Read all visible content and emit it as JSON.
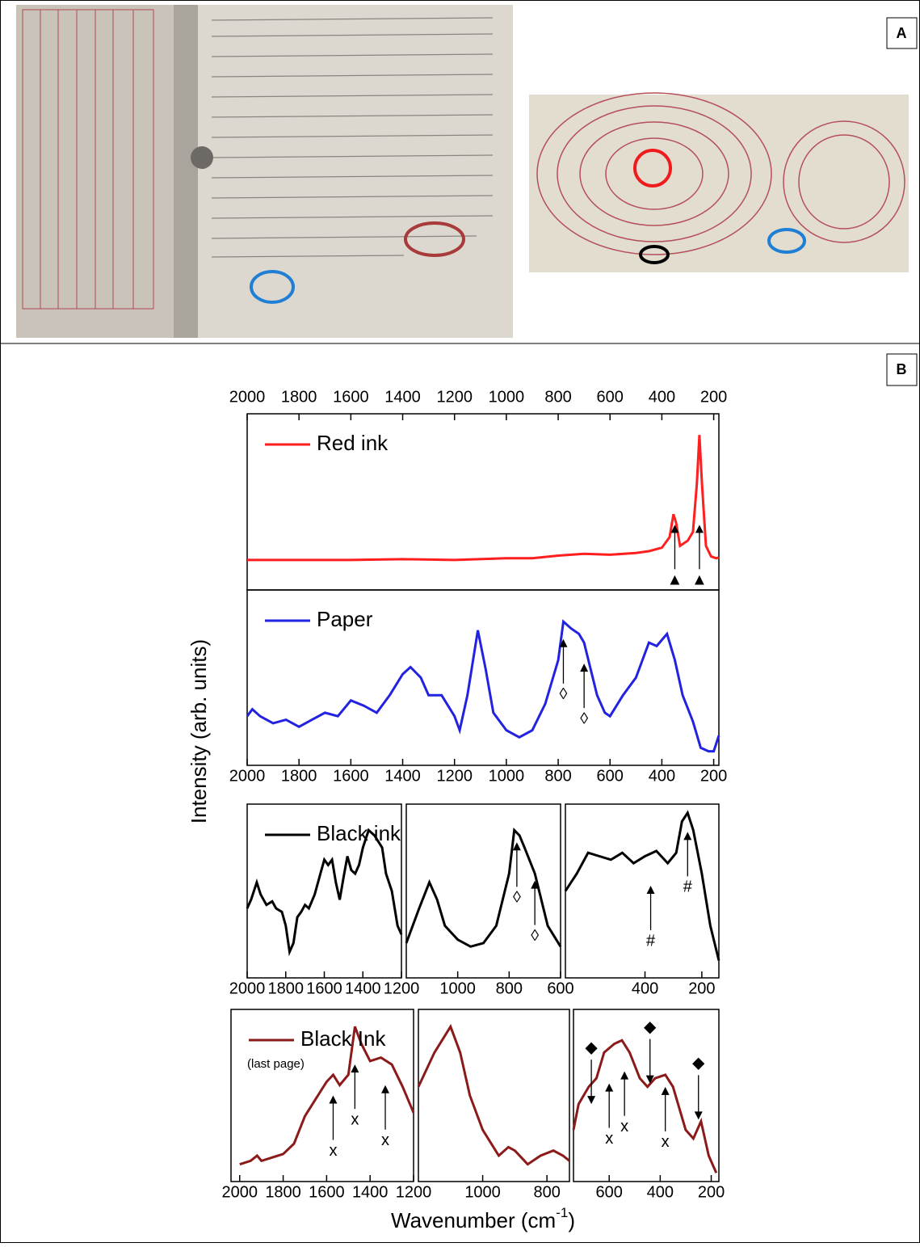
{
  "panels": {
    "a": "A",
    "b": "B"
  },
  "figure": {
    "y_label": "Intensity (arb. units)",
    "x_label": [
      "Wavenumber (cm",
      "-1",
      ")"
    ]
  },
  "chart_data": [
    {
      "type": "line",
      "xaxis_position": "top",
      "xlim": [
        2000,
        180
      ],
      "ylim": [
        0,
        100
      ],
      "xticks": [
        2000,
        1800,
        1600,
        1400,
        1200,
        1000,
        800,
        600,
        400,
        200
      ],
      "x": [
        2000,
        1800,
        1600,
        1400,
        1200,
        1000,
        900,
        800,
        700,
        600,
        500,
        450,
        400,
        370,
        355,
        345,
        330,
        300,
        280,
        265,
        255,
        245,
        230,
        210,
        190,
        180
      ],
      "series": [
        {
          "name": "Red ink",
          "color": "#ff1f1f",
          "values": [
            17,
            17,
            17,
            17.5,
            17,
            18,
            18,
            19.5,
            20.5,
            20,
            21,
            22,
            24,
            30,
            43,
            38,
            25,
            28,
            33,
            60,
            88,
            60,
            25,
            19,
            18,
            18.5
          ]
        }
      ],
      "annotations": [
        {
          "text": "▲",
          "x": 350,
          "y": 37,
          "arrow": "up"
        },
        {
          "text": "▲",
          "x": 255,
          "y": 37,
          "arrow": "up"
        }
      ]
    },
    {
      "type": "line",
      "xaxis_position": "bottom",
      "xlim": [
        2000,
        180
      ],
      "ylim": [
        0,
        100
      ],
      "xticks": [
        2000,
        1800,
        1600,
        1400,
        1200,
        1000,
        800,
        600,
        400,
        200
      ],
      "x": [
        2000,
        1980,
        1950,
        1900,
        1850,
        1800,
        1750,
        1700,
        1650,
        1600,
        1550,
        1500,
        1450,
        1400,
        1370,
        1330,
        1300,
        1250,
        1200,
        1180,
        1150,
        1110,
        1080,
        1050,
        1000,
        950,
        900,
        850,
        800,
        780,
        750,
        720,
        700,
        650,
        620,
        600,
        550,
        500,
        450,
        420,
        380,
        350,
        320,
        280,
        250,
        220,
        200,
        180
      ],
      "series": [
        {
          "name": "Paper",
          "color": "#2222e0",
          "values": [
            28,
            32,
            28,
            24,
            26,
            22,
            26,
            30,
            28,
            37,
            34,
            30,
            40,
            52,
            56,
            50,
            40,
            40,
            28,
            20,
            40,
            77,
            55,
            30,
            20,
            16,
            20,
            35,
            60,
            82,
            78,
            75,
            70,
            40,
            30,
            28,
            40,
            50,
            70,
            68,
            75,
            60,
            40,
            25,
            10,
            8,
            8,
            17
          ]
        }
      ],
      "annotations": [
        {
          "text": "◊",
          "x": 780,
          "y": 72,
          "arrow": "up"
        },
        {
          "text": "◊",
          "x": 700,
          "y": 58,
          "arrow": "up"
        }
      ]
    },
    {
      "type": "line",
      "xaxis_position": "bottom",
      "xlim": [
        2000,
        1200
      ],
      "ylim": [
        0,
        100
      ],
      "xticks": [
        2000,
        1800,
        1600,
        1400,
        1200
      ],
      "x": [
        2000,
        1980,
        1950,
        1930,
        1900,
        1870,
        1850,
        1820,
        1800,
        1780,
        1760,
        1740,
        1720,
        1700,
        1680,
        1650,
        1620,
        1600,
        1580,
        1560,
        1540,
        1520,
        1500,
        1480,
        1460,
        1440,
        1420,
        1400,
        1370,
        1340,
        1300,
        1280,
        1250,
        1220,
        1200
      ],
      "series": [
        {
          "name": "Black ink",
          "color": "#000000",
          "values": [
            40,
            45,
            55,
            48,
            42,
            44,
            40,
            38,
            30,
            15,
            20,
            35,
            38,
            42,
            40,
            48,
            60,
            68,
            65,
            68,
            55,
            45,
            58,
            70,
            62,
            60,
            65,
            75,
            85,
            82,
            75,
            60,
            50,
            30,
            25
          ]
        }
      ]
    },
    {
      "type": "line",
      "xaxis_position": "bottom",
      "xlim": [
        1200,
        600
      ],
      "ylim": [
        0,
        100
      ],
      "xticks": [
        1000,
        800,
        600
      ],
      "x": [
        1200,
        1150,
        1110,
        1080,
        1050,
        1000,
        950,
        900,
        850,
        800,
        780,
        760,
        740,
        700,
        650,
        600
      ],
      "series": [
        {
          "color": "#000000",
          "values": [
            20,
            40,
            55,
            45,
            30,
            22,
            18,
            20,
            30,
            60,
            85,
            82,
            75,
            60,
            30,
            18
          ]
        }
      ],
      "annotations": [
        {
          "text": "◊",
          "x": 770,
          "y": 78,
          "arrow": "up"
        },
        {
          "text": "◊",
          "x": 700,
          "y": 56,
          "arrow": "up"
        }
      ]
    },
    {
      "type": "line",
      "xaxis_position": "bottom",
      "xlim": [
        680,
        140
      ],
      "ylim": [
        0,
        100
      ],
      "xticks": [
        400,
        200
      ],
      "x": [
        680,
        660,
        640,
        600,
        560,
        520,
        480,
        440,
        400,
        360,
        320,
        290,
        270,
        250,
        230,
        200,
        170,
        140
      ],
      "series": [
        {
          "color": "#000000",
          "values": [
            50,
            55,
            60,
            72,
            70,
            68,
            72,
            66,
            70,
            73,
            66,
            72,
            90,
            95,
            85,
            60,
            30,
            10
          ]
        }
      ],
      "annotations": [
        {
          "text": "#",
          "x": 380,
          "y": 53,
          "arrow": "up"
        },
        {
          "text": "#",
          "x": 250,
          "y": 84,
          "arrow": "up"
        }
      ]
    },
    {
      "type": "line",
      "xaxis_position": "bottom",
      "xlim": [
        2040,
        1200
      ],
      "ylim": [
        0,
        100
      ],
      "xticks": [
        2000,
        1800,
        1600,
        1400,
        1200
      ],
      "x": [
        2000,
        1950,
        1920,
        1900,
        1850,
        1800,
        1750,
        1700,
        1650,
        1600,
        1570,
        1540,
        1500,
        1470,
        1440,
        1400,
        1350,
        1300,
        1250,
        1200
      ],
      "series": [
        {
          "name": "Black Ink",
          "color": "#8b1a1a",
          "values": [
            10,
            12,
            15,
            12,
            14,
            16,
            22,
            38,
            48,
            58,
            62,
            56,
            62,
            90,
            80,
            70,
            72,
            68,
            55,
            40
          ]
        }
      ],
      "note": "(last page)",
      "annotations": [
        {
          "text": "x",
          "x": 1570,
          "y": 50,
          "arrow": "up"
        },
        {
          "text": "x",
          "x": 1470,
          "y": 68,
          "arrow": "up"
        },
        {
          "text": "x",
          "x": 1330,
          "y": 56,
          "arrow": "up"
        }
      ]
    },
    {
      "type": "line",
      "xaxis_position": "bottom",
      "xlim": [
        1200,
        730
      ],
      "ylim": [
        0,
        100
      ],
      "xticks": [
        1000,
        800
      ],
      "x": [
        1200,
        1150,
        1100,
        1070,
        1040,
        1000,
        950,
        920,
        900,
        860,
        820,
        780,
        750,
        730
      ],
      "series": [
        {
          "color": "#8b1a1a",
          "values": [
            55,
            75,
            90,
            75,
            50,
            30,
            15,
            20,
            18,
            10,
            15,
            18,
            15,
            12
          ]
        }
      ]
    },
    {
      "type": "line",
      "xaxis_position": "bottom",
      "xlim": [
        740,
        170
      ],
      "ylim": [
        0,
        100
      ],
      "xticks": [
        600,
        400,
        200
      ],
      "x": [
        740,
        720,
        680,
        650,
        620,
        580,
        550,
        520,
        480,
        450,
        420,
        380,
        350,
        300,
        270,
        240,
        210,
        180
      ],
      "series": [
        {
          "color": "#8b1a1a",
          "values": [
            30,
            45,
            55,
            60,
            75,
            80,
            82,
            75,
            60,
            55,
            60,
            62,
            55,
            30,
            25,
            35,
            15,
            5
          ]
        }
      ],
      "annotations": [
        {
          "text": "◆",
          "x": 670,
          "y": 45,
          "arrow": "down"
        },
        {
          "text": "◆",
          "x": 440,
          "y": 57,
          "arrow": "down"
        },
        {
          "text": "◆",
          "x": 250,
          "y": 36,
          "arrow": "down"
        },
        {
          "text": "x",
          "x": 600,
          "y": 57,
          "arrow": "up"
        },
        {
          "text": "x",
          "x": 540,
          "y": 64,
          "arrow": "up"
        },
        {
          "text": "x",
          "x": 380,
          "y": 55,
          "arrow": "up"
        }
      ]
    }
  ]
}
